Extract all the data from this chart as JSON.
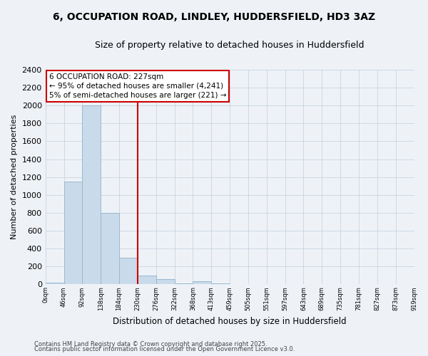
{
  "title": "6, OCCUPATION ROAD, LINDLEY, HUDDERSFIELD, HD3 3AZ",
  "subtitle": "Size of property relative to detached houses in Huddersfield",
  "xlabel": "Distribution of detached houses by size in Huddersfield",
  "ylabel": "Number of detached properties",
  "bin_labels": [
    "0sqm",
    "46sqm",
    "92sqm",
    "138sqm",
    "184sqm",
    "230sqm",
    "276sqm",
    "322sqm",
    "368sqm",
    "413sqm",
    "459sqm",
    "505sqm",
    "551sqm",
    "597sqm",
    "643sqm",
    "689sqm",
    "735sqm",
    "781sqm",
    "827sqm",
    "873sqm",
    "919sqm"
  ],
  "bar_heights": [
    20,
    1150,
    2000,
    800,
    300,
    100,
    60,
    15,
    35,
    10,
    5,
    3,
    2,
    0,
    0,
    0,
    0,
    0,
    0,
    0
  ],
  "bar_color": "#c9daea",
  "bar_edge_color": "#9ab8d0",
  "vline_color": "#cc0000",
  "vline_pos": 5.0,
  "annotation_title": "6 OCCUPATION ROAD: 227sqm",
  "annotation_line1": "← 95% of detached houses are smaller (4,241)",
  "annotation_line2": "5% of semi-detached houses are larger (221) →",
  "annotation_box_color": "#cc0000",
  "ylim": [
    0,
    2400
  ],
  "yticks": [
    0,
    200,
    400,
    600,
    800,
    1000,
    1200,
    1400,
    1600,
    1800,
    2000,
    2200,
    2400
  ],
  "footer_line1": "Contains HM Land Registry data © Crown copyright and database right 2025.",
  "footer_line2": "Contains public sector information licensed under the Open Government Licence v3.0.",
  "background_color": "#eef2f7",
  "plot_background": "#eef2f7",
  "grid_color": "#c8d4e0"
}
